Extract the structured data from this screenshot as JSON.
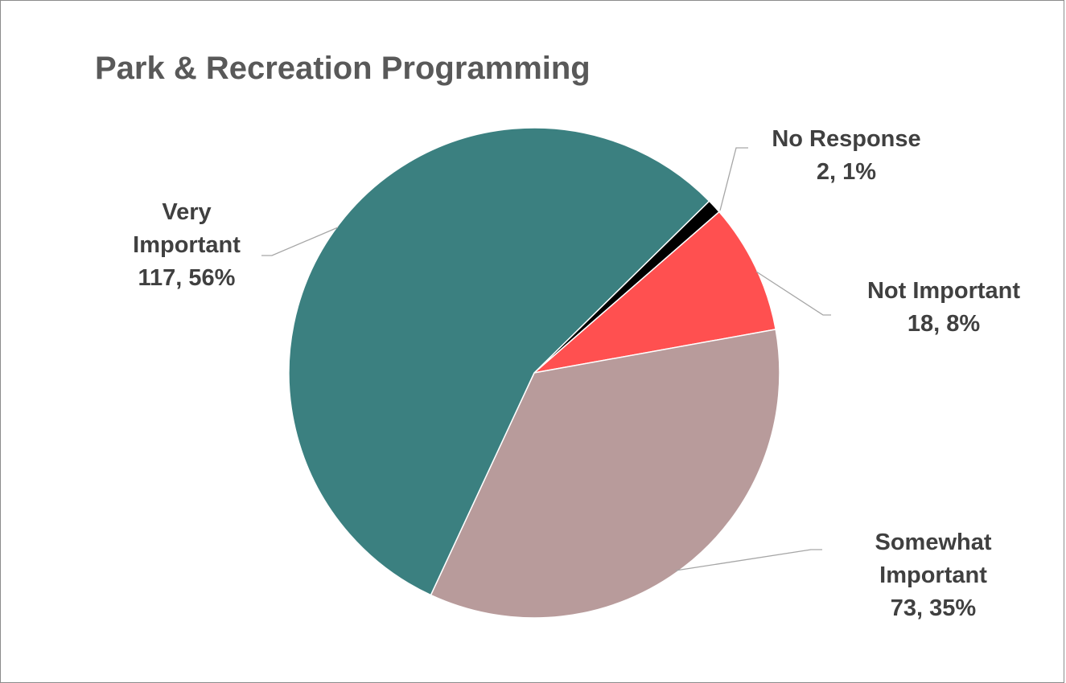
{
  "chart_data": {
    "type": "pie",
    "title": "Park & Recreation Programming",
    "slices": [
      {
        "name": "No Response",
        "value": 2,
        "percent_label": "1%",
        "color": "#000000"
      },
      {
        "name": "Not Important",
        "value": 18,
        "percent_label": "8%",
        "color": "#ff5050"
      },
      {
        "name": "Somewhat Important",
        "value": 73,
        "percent_label": "35%",
        "color": "#b89b9b"
      },
      {
        "name": "Very Important",
        "value": 117,
        "percent_label": "56%",
        "color": "#3b8080"
      }
    ],
    "labels": [
      {
        "lines": [
          "No Response",
          "2, 1%"
        ]
      },
      {
        "lines": [
          "Not Important",
          "18, 8%"
        ]
      },
      {
        "lines": [
          "Somewhat",
          "Important",
          "73, 35%"
        ]
      },
      {
        "lines": [
          "Very",
          "Important",
          "117, 56%"
        ]
      }
    ]
  }
}
